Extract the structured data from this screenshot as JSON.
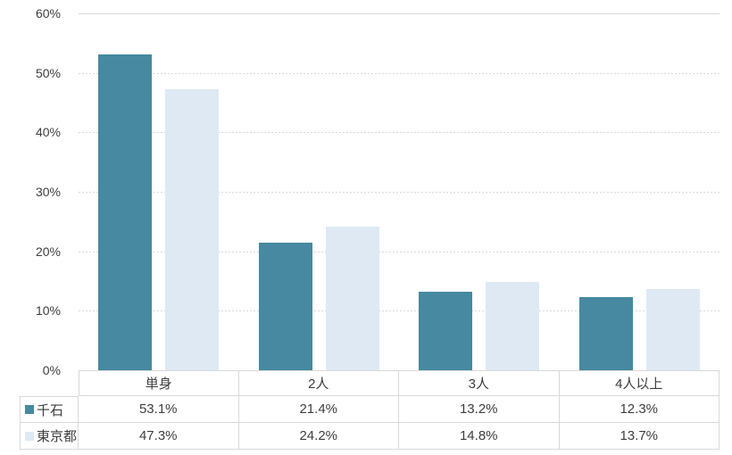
{
  "chart_data": {
    "type": "bar",
    "title": "",
    "categories": [
      "単身",
      "2人",
      "3人",
      "4人以上"
    ],
    "series": [
      {
        "name": "千石",
        "color": "#4689A0",
        "values": [
          53.1,
          21.4,
          13.2,
          12.3
        ]
      },
      {
        "name": "東京都",
        "color": "#DEE9F4",
        "values": [
          47.3,
          24.2,
          14.8,
          13.7
        ]
      }
    ],
    "value_suffix": "%",
    "yticks": [
      "0%",
      "10%",
      "20%",
      "30%",
      "40%",
      "50%",
      "60%"
    ],
    "ylim": [
      0,
      60
    ],
    "ytick_step": 10,
    "grid": "horizontal-dashed",
    "legend_position": "data-table-left",
    "data_table_shown": true
  },
  "style": {
    "background": "#FFFFFF",
    "gridline_color": "#D9D9D9",
    "table_border_color": "#D9D9D9",
    "text_color": "#3D3D3D",
    "series_colors": [
      "#4689A0",
      "#DEE9F4"
    ]
  }
}
